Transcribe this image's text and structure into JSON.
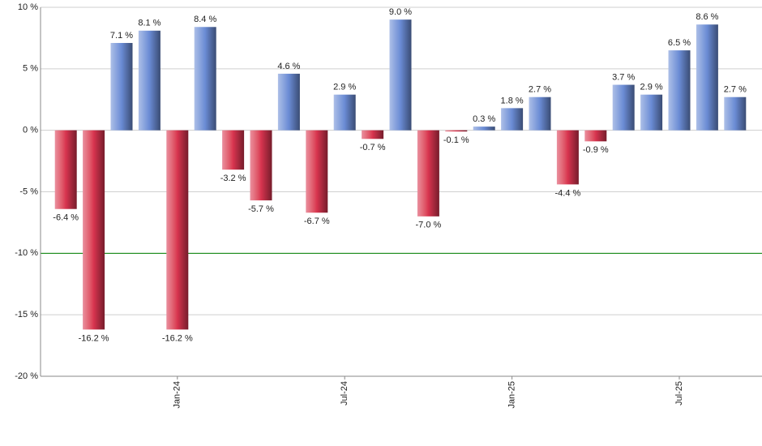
{
  "chart_data": {
    "type": "bar",
    "categories": [
      null,
      null,
      null,
      null,
      "Jan-24",
      null,
      null,
      null,
      null,
      null,
      "Jul-24",
      null,
      null,
      null,
      null,
      null,
      "Jan-25",
      null,
      null,
      null,
      null,
      null,
      "Jul-25",
      null,
      null
    ],
    "values": [
      -6.4,
      -16.2,
      7.1,
      8.1,
      -16.2,
      8.4,
      -3.2,
      -5.7,
      4.6,
      -6.7,
      2.9,
      -0.7,
      9.0,
      -7.0,
      -0.1,
      0.3,
      1.8,
      2.7,
      -4.4,
      -0.9,
      3.7,
      2.9,
      6.5,
      8.6,
      2.7
    ],
    "value_labels": [
      "-6.4 %",
      "-16.2 %",
      "7.1 %",
      "8.1 %",
      "-16.2 %",
      "8.4 %",
      "-3.2 %",
      "-5.7 %",
      "4.6 %",
      "-6.7 %",
      "2.9 %",
      "-0.7 %",
      "9.0 %",
      "-7.0 %",
      "-0.1 %",
      "0.3 %",
      "1.8 %",
      "2.7 %",
      "-4.4 %",
      "-0.9 %",
      "3.7 %",
      "2.9 %",
      "6.5 %",
      "8.6 %",
      "2.7 %"
    ],
    "ylim": [
      -20,
      10
    ],
    "yticks": [
      {
        "value": -20,
        "label": "-20 %"
      },
      {
        "value": -15,
        "label": "-15 %"
      },
      {
        "value": -10,
        "label": "-10 %"
      },
      {
        "value": -5,
        "label": "-5 %"
      },
      {
        "value": 0,
        "label": "0 %"
      },
      {
        "value": 5,
        "label": "5 %"
      },
      {
        "value": 10,
        "label": "10 %"
      }
    ],
    "grid": true,
    "positive_color": "#6a8bd4",
    "negative_color": "#d8344f",
    "reference_line": {
      "value": -10,
      "color": "#008000"
    }
  }
}
